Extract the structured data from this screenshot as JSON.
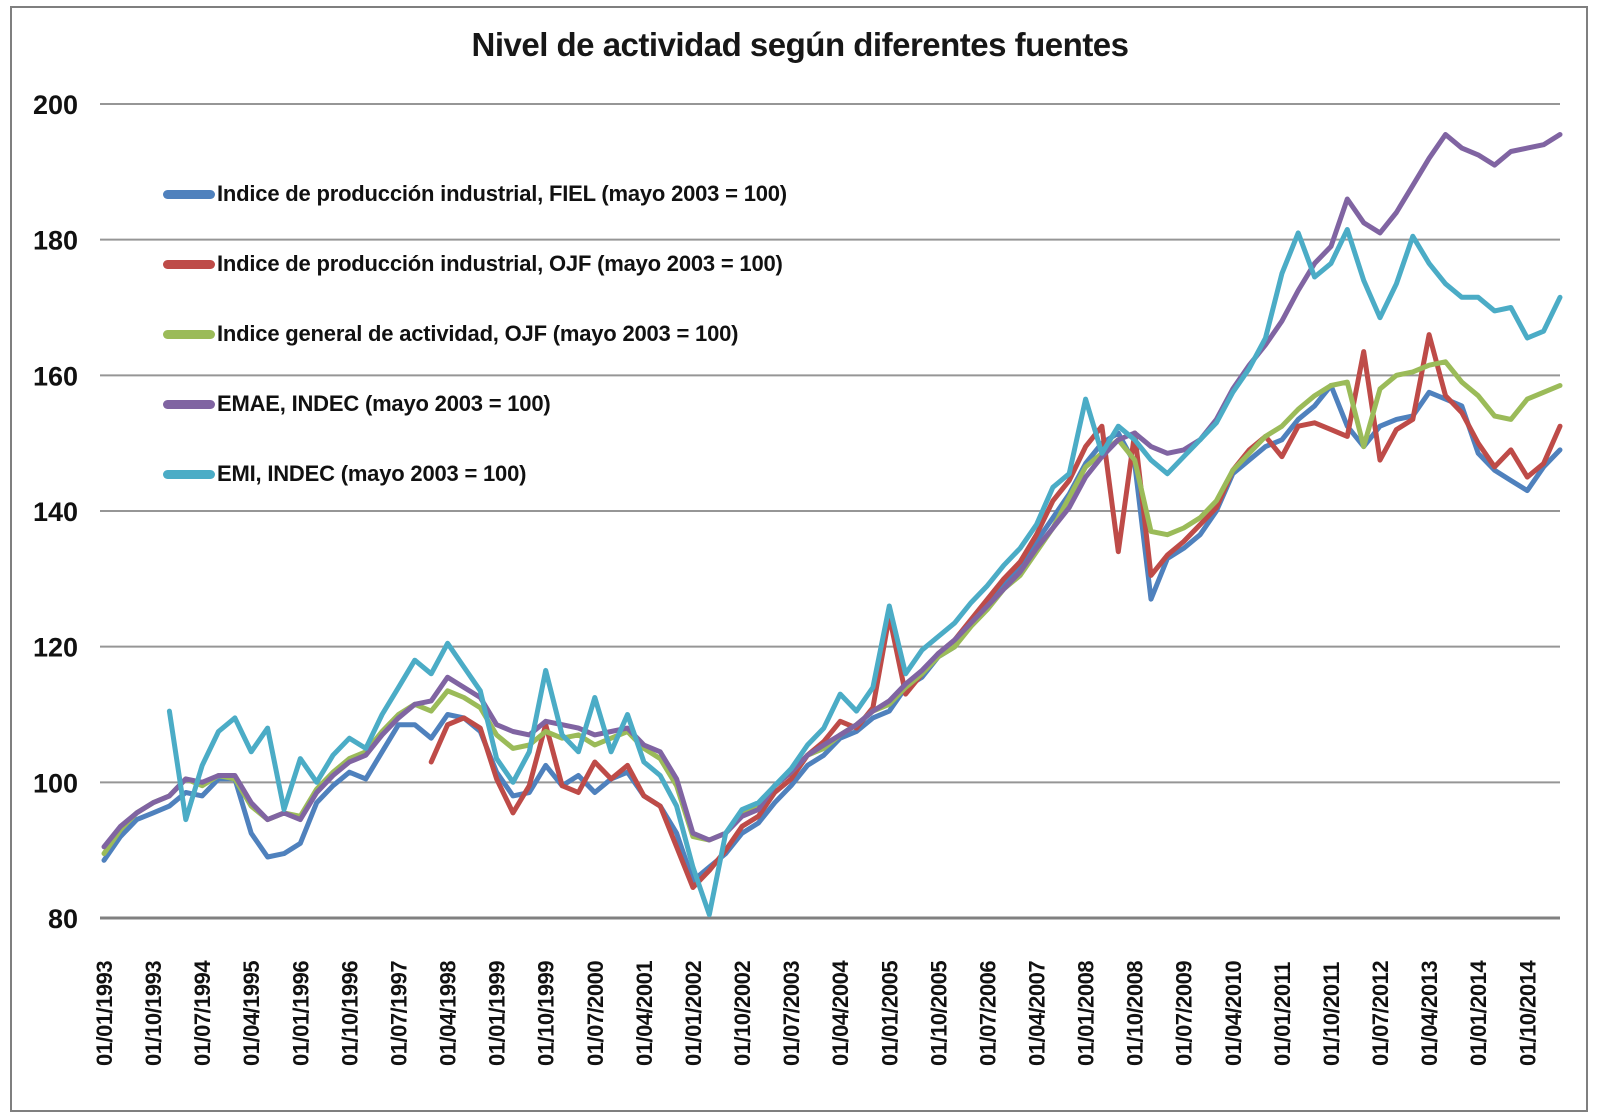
{
  "title": "Nivel de actividad según diferentes fuentes",
  "legend": {
    "items": [
      {
        "label": "Indice de producción industrial, FIEL (mayo 2003 = 100)",
        "color": "#4F81BD"
      },
      {
        "label": "Indice de producción industrial, OJF (mayo 2003 = 100)",
        "color": "#BE4B48"
      },
      {
        "label": "Indice general de actividad, OJF (mayo 2003 = 100)",
        "color": "#9BBB59"
      },
      {
        "label": "EMAE, INDEC (mayo 2003 = 100)",
        "color": "#8064A2"
      },
      {
        "label": "EMI, INDEC (mayo 2003 = 100)",
        "color": "#4BACC6"
      }
    ]
  },
  "chart_data": {
    "type": "line",
    "title": "Nivel de actividad según diferentes fuentes",
    "xlabel": "",
    "ylabel": "",
    "ylim": [
      80,
      200
    ],
    "y_ticks": [
      80,
      100,
      120,
      140,
      160,
      180,
      200
    ],
    "grid": true,
    "grid_color": "#969696",
    "axis_color": "#808080",
    "legend_position": "inside-top-left",
    "x_tick_labels": [
      "01/01/1993",
      "01/10/1993",
      "01/07/1994",
      "01/04/1995",
      "01/01/1996",
      "01/10/1996",
      "01/07/1997",
      "01/04/1998",
      "01/01/1999",
      "01/10/1999",
      "01/07/2000",
      "01/04/2001",
      "01/01/2002",
      "01/10/2002",
      "01/07/2003",
      "01/04/2004",
      "01/01/2005",
      "01/10/2005",
      "01/07/2006",
      "01/04/2007",
      "01/01/2008",
      "01/10/2008",
      "01/07/2009",
      "01/04/2010",
      "01/01/2011",
      "01/10/2011",
      "01/07/2012",
      "01/04/2013",
      "01/01/2014",
      "01/10/2014"
    ],
    "x_tick_interval_months": 9,
    "sampling_note": "values are quarterly estimates read from the plot, index mayo 2003 = 100",
    "x": [
      "01/01/1993",
      "01/04/1993",
      "01/07/1993",
      "01/10/1993",
      "01/01/1994",
      "01/04/1994",
      "01/07/1994",
      "01/10/1994",
      "01/01/1995",
      "01/04/1995",
      "01/07/1995",
      "01/10/1995",
      "01/01/1996",
      "01/04/1996",
      "01/07/1996",
      "01/10/1996",
      "01/01/1997",
      "01/04/1997",
      "01/07/1997",
      "01/10/1997",
      "01/01/1998",
      "01/04/1998",
      "01/07/1998",
      "01/10/1998",
      "01/01/1999",
      "01/04/1999",
      "01/07/1999",
      "01/10/1999",
      "01/01/2000",
      "01/04/2000",
      "01/07/2000",
      "01/10/2000",
      "01/01/2001",
      "01/04/2001",
      "01/07/2001",
      "01/10/2001",
      "01/01/2002",
      "01/04/2002",
      "01/07/2002",
      "01/10/2002",
      "01/01/2003",
      "01/04/2003",
      "01/07/2003",
      "01/10/2003",
      "01/01/2004",
      "01/04/2004",
      "01/07/2004",
      "01/10/2004",
      "01/01/2005",
      "01/04/2005",
      "01/07/2005",
      "01/10/2005",
      "01/01/2006",
      "01/04/2006",
      "01/07/2006",
      "01/10/2006",
      "01/01/2007",
      "01/04/2007",
      "01/07/2007",
      "01/10/2007",
      "01/01/2008",
      "01/04/2008",
      "01/07/2008",
      "01/10/2008",
      "01/01/2009",
      "01/04/2009",
      "01/07/2009",
      "01/10/2009",
      "01/01/2010",
      "01/04/2010",
      "01/07/2010",
      "01/10/2010",
      "01/01/2011",
      "01/04/2011",
      "01/07/2011",
      "01/10/2011",
      "01/01/2012",
      "01/04/2012",
      "01/07/2012",
      "01/10/2012",
      "01/01/2013",
      "01/04/2013",
      "01/07/2013",
      "01/10/2013",
      "01/01/2014",
      "01/04/2014",
      "01/07/2014",
      "01/10/2014",
      "01/01/2015",
      "01/04/2015"
    ],
    "series": [
      {
        "name": "Indice de producción industrial, FIEL (mayo 2003 = 100)",
        "color": "#4F81BD",
        "values": [
          88.5,
          92,
          94.5,
          95.5,
          96.5,
          98.5,
          98,
          100.5,
          100.5,
          92.5,
          89,
          89.5,
          91,
          97,
          99.5,
          101.5,
          100.5,
          104.5,
          108.5,
          108.5,
          106.5,
          110,
          109.5,
          107.5,
          101.5,
          98,
          98.5,
          102.5,
          99.5,
          101,
          98.5,
          100.5,
          101.5,
          98,
          96.5,
          92.5,
          85.5,
          87.5,
          89.5,
          92.5,
          94,
          97,
          99.5,
          102.5,
          104,
          106.5,
          107.5,
          109.5,
          110.5,
          114,
          115.5,
          118.5,
          120,
          123.5,
          126.5,
          129.5,
          131.5,
          135.5,
          139,
          142.5,
          147,
          150,
          151.5,
          147,
          127,
          133,
          134.5,
          136.5,
          140,
          145.5,
          147.5,
          149.5,
          150.5,
          153.5,
          155.5,
          158.5,
          152.5,
          149.5,
          152.5,
          153.5,
          154,
          157.5,
          156.5,
          155.5,
          148.5,
          146,
          144.5,
          143,
          146.5,
          149
        ]
      },
      {
        "name": "Indice de producción industrial, OJF (mayo 2003 = 100)",
        "color": "#BE4B48",
        "values": [
          null,
          null,
          null,
          null,
          null,
          null,
          null,
          null,
          null,
          null,
          null,
          null,
          null,
          null,
          null,
          null,
          null,
          null,
          null,
          null,
          103,
          108.5,
          109.5,
          108,
          100.5,
          95.5,
          99.5,
          108.5,
          99.5,
          98.5,
          103,
          100.5,
          102.5,
          98,
          96.5,
          90.5,
          84.5,
          87,
          90,
          93.5,
          95,
          98.5,
          100.5,
          104,
          106,
          109,
          108,
          111,
          124.5,
          113,
          116,
          119,
          121,
          124,
          127,
          130,
          132.5,
          136.5,
          141.5,
          144.5,
          149.5,
          152.5,
          134,
          151.5,
          130.5,
          133.5,
          135.5,
          138,
          140.5,
          146,
          149,
          151,
          148,
          152.5,
          153,
          152,
          151,
          163.5,
          147.5,
          152,
          153.5,
          166,
          157,
          154.5,
          150,
          146.5,
          149,
          145,
          147,
          152.5
        ]
      },
      {
        "name": "Indice general de actividad, OJF (mayo 2003 = 100)",
        "color": "#9BBB59",
        "values": [
          89.5,
          93,
          95.5,
          97,
          98,
          100.5,
          99.5,
          101,
          100.5,
          96.5,
          94.5,
          95.5,
          95,
          99,
          101.5,
          103.5,
          104.5,
          107.5,
          110,
          111.5,
          110.5,
          113.5,
          112.5,
          111,
          107,
          105,
          105.5,
          107.5,
          106.5,
          107,
          105.5,
          106.5,
          107.5,
          105,
          103.5,
          99.5,
          92,
          91.5,
          92.5,
          95.5,
          96.5,
          99.5,
          101.5,
          104,
          105,
          107,
          108.5,
          110.5,
          111.5,
          114,
          116,
          118.5,
          120,
          123,
          125.5,
          128.5,
          130.5,
          134,
          137.5,
          142,
          146.5,
          148.5,
          150.5,
          147.5,
          137,
          136.5,
          137.5,
          139,
          141.5,
          146,
          148.5,
          151,
          152.5,
          155,
          157,
          158.5,
          159,
          149.5,
          158,
          160,
          160.5,
          161.5,
          162,
          159,
          157,
          154,
          153.5,
          156.5,
          157.5,
          158.5
        ]
      },
      {
        "name": "EMAE, INDEC (mayo 2003 = 100)",
        "color": "#8064A2",
        "values": [
          90.5,
          93.5,
          95.5,
          97,
          98,
          100.5,
          100,
          101,
          101,
          97,
          94.5,
          95.5,
          94.5,
          98.5,
          101,
          103,
          104,
          107,
          109.5,
          111.5,
          112,
          115.5,
          114,
          112.5,
          108.5,
          107.5,
          107,
          109,
          108.5,
          108,
          107,
          107.5,
          108,
          105.5,
          104.5,
          100.5,
          92.5,
          91.5,
          92.5,
          95,
          96,
          99.5,
          101.5,
          104,
          105.5,
          107,
          108.5,
          110.5,
          112,
          114.5,
          116.5,
          119,
          121,
          123.5,
          126,
          128.5,
          131,
          134.5,
          137.5,
          140.5,
          145,
          148,
          150.5,
          151.5,
          149.5,
          148.5,
          149,
          150.5,
          153.5,
          158,
          161.5,
          164.5,
          168,
          172.5,
          176.5,
          179,
          186,
          182.5,
          181,
          184,
          188,
          192,
          195.5,
          193.5,
          192.5,
          191,
          193,
          193.5,
          194,
          195.5
        ]
      },
      {
        "name": "EMI, INDEC (mayo 2003 = 100)",
        "color": "#4BACC6",
        "values": [
          null,
          null,
          null,
          null,
          110.5,
          94.5,
          102.5,
          107.5,
          109.5,
          104.5,
          108,
          96,
          103.5,
          100,
          104,
          106.5,
          105,
          110,
          114,
          118,
          116,
          120.5,
          117,
          113.5,
          103.5,
          100,
          104.5,
          116.5,
          107,
          104.5,
          112.5,
          104.5,
          110,
          103,
          101,
          96.5,
          87.5,
          80.5,
          92.5,
          96,
          97,
          99.5,
          102,
          105.5,
          108,
          113,
          110.5,
          114,
          126,
          116,
          119.5,
          121.5,
          123.5,
          126.5,
          129,
          132,
          134.5,
          138,
          143.5,
          145.5,
          156.5,
          148.5,
          152.5,
          150.5,
          147.5,
          145.5,
          148,
          150.5,
          153,
          157.5,
          161,
          165.5,
          175,
          181,
          174.5,
          176.5,
          181.5,
          174,
          168.5,
          173.5,
          180.5,
          176.5,
          173.5,
          171.5,
          171.5,
          169.5,
          170,
          165.5,
          166.5,
          171.5
        ]
      }
    ]
  }
}
